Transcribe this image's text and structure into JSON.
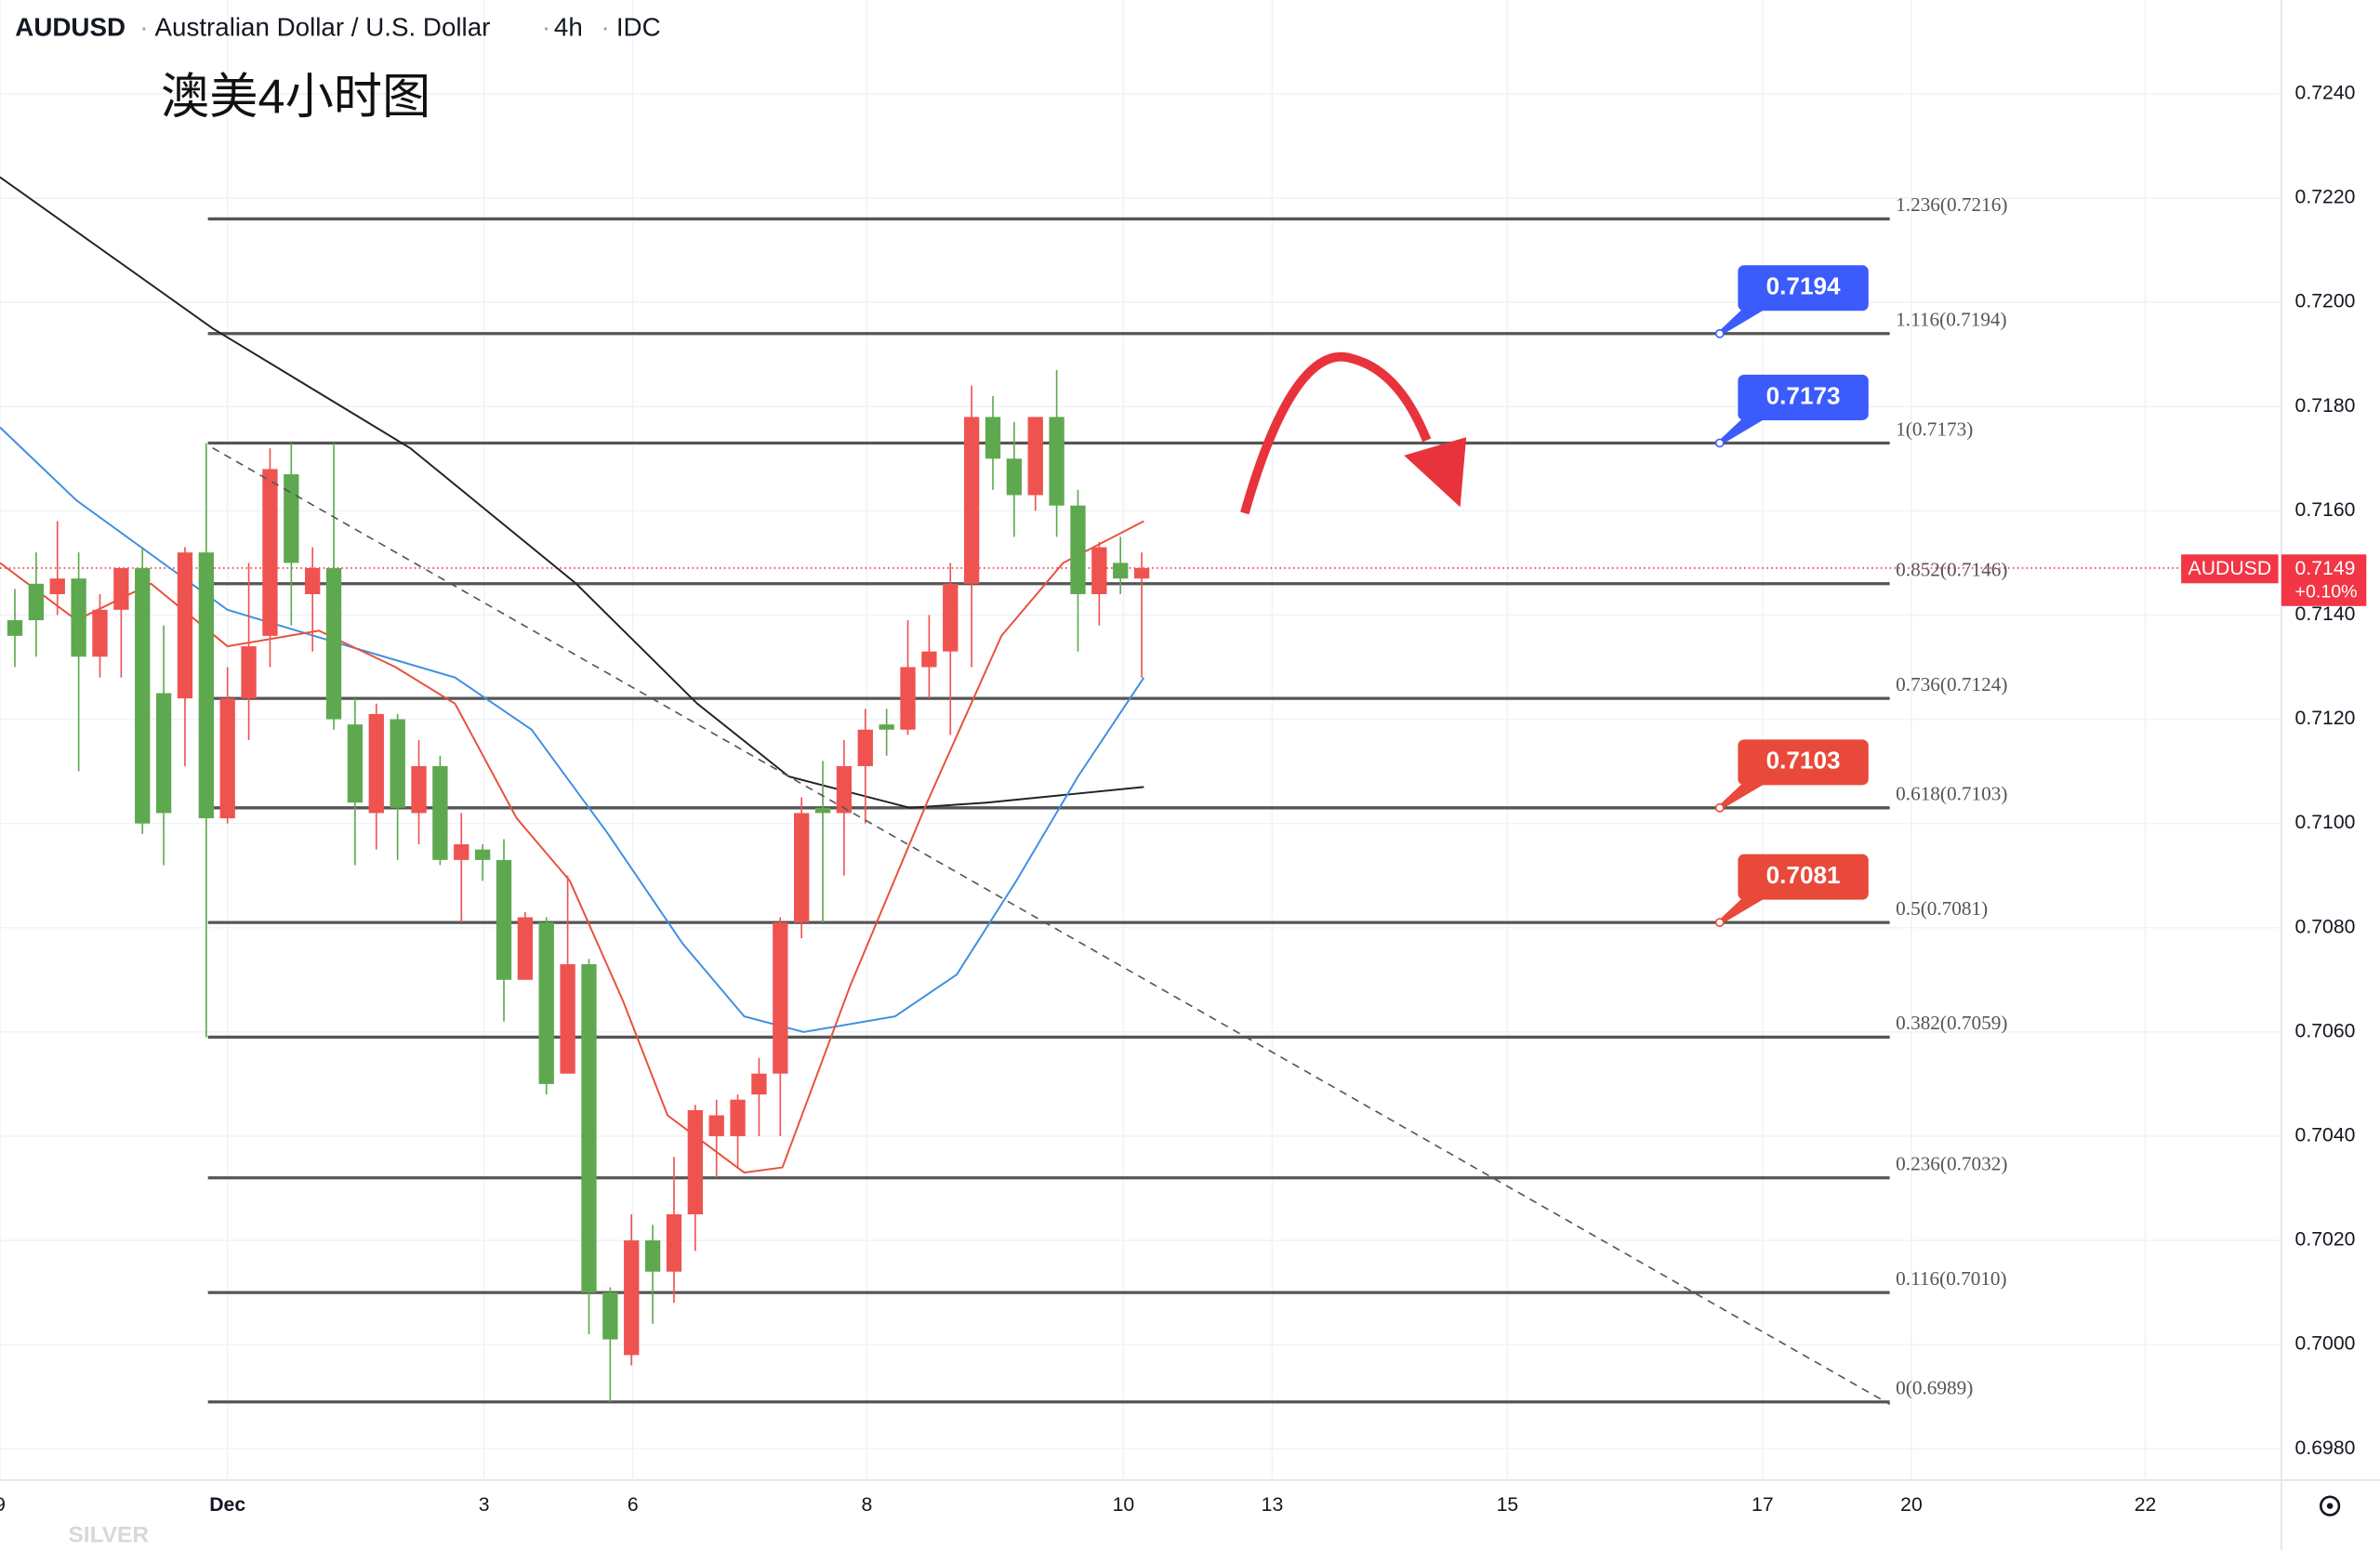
{
  "header": {
    "symbol": "AUDUSD",
    "name": "Australian Dollar / U.S. Dollar",
    "interval": "4h",
    "source": "IDC"
  },
  "chart_data": {
    "type": "candlestick",
    "title": "澳美4小时图",
    "watermark": "SILVER",
    "open": [
      0.7139,
      0.7146,
      0.7144,
      0.7147,
      0.7132,
      0.7141,
      0.7149,
      0.7125,
      0.7124,
      0.7152,
      0.7101,
      0.7124,
      0.7136,
      0.7167,
      0.7144,
      0.7149,
      0.7119,
      0.7102,
      0.712,
      0.7102,
      0.7111,
      0.7093,
      0.7095,
      0.7093,
      0.707,
      0.7081,
      0.7052,
      0.7073,
      0.701,
      0.6998,
      0.702,
      0.7014,
      0.7025,
      0.704,
      0.704,
      0.7048,
      0.7052,
      0.7081,
      0.7103,
      0.7102,
      0.7111,
      0.7119,
      0.7118,
      0.713,
      0.7133,
      0.7146,
      0.7178,
      0.717,
      0.7163,
      0.7178,
      0.7161,
      0.7144,
      0.715,
      0.7147
    ],
    "high": [
      0.7145,
      0.7152,
      0.7158,
      0.7152,
      0.7144,
      0.7149,
      0.7153,
      0.7138,
      0.7153,
      0.7173,
      0.713,
      0.715,
      0.7172,
      0.7173,
      0.7153,
      0.7173,
      0.7124,
      0.7123,
      0.7121,
      0.7116,
      0.7113,
      0.7102,
      0.7096,
      0.7097,
      0.7083,
      0.7082,
      0.709,
      0.7074,
      0.7011,
      0.7025,
      0.7023,
      0.7036,
      0.7046,
      0.7047,
      0.7048,
      0.7055,
      0.7082,
      0.7105,
      0.7112,
      0.7116,
      0.7122,
      0.7122,
      0.7139,
      0.714,
      0.715,
      0.7184,
      0.7182,
      0.7177,
      0.7178,
      0.7187,
      0.7164,
      0.7154,
      0.7155,
      0.7152
    ],
    "low": [
      0.713,
      0.7132,
      0.714,
      0.711,
      0.7128,
      0.7128,
      0.7098,
      0.7092,
      0.7111,
      0.7059,
      0.71,
      0.7116,
      0.713,
      0.7138,
      0.7133,
      0.7118,
      0.7092,
      0.7095,
      0.7093,
      0.7096,
      0.7092,
      0.7081,
      0.7089,
      0.7062,
      0.707,
      0.7048,
      0.7052,
      0.7002,
      0.6989,
      0.6996,
      0.7004,
      0.7008,
      0.7018,
      0.7032,
      0.7034,
      0.704,
      0.704,
      0.7078,
      0.7081,
      0.709,
      0.71,
      0.7113,
      0.7117,
      0.7124,
      0.7117,
      0.713,
      0.7164,
      0.7155,
      0.716,
      0.7155,
      0.7133,
      0.7138,
      0.7144,
      0.7128
    ],
    "close": [
      0.7136,
      0.7139,
      0.7147,
      0.7132,
      0.7141,
      0.7149,
      0.71,
      0.7102,
      0.7152,
      0.7101,
      0.7124,
      0.7134,
      0.7168,
      0.715,
      0.7149,
      0.712,
      0.7104,
      0.7121,
      0.7103,
      0.7111,
      0.7093,
      0.7096,
      0.7093,
      0.707,
      0.7082,
      0.705,
      0.7073,
      0.701,
      0.7001,
      0.702,
      0.7014,
      0.7025,
      0.7045,
      0.7044,
      0.7047,
      0.7052,
      0.7081,
      0.7102,
      0.7102,
      0.7111,
      0.7118,
      0.7118,
      0.713,
      0.7133,
      0.7146,
      0.7178,
      0.717,
      0.7163,
      0.7178,
      0.7161,
      0.7144,
      0.7153,
      0.7147,
      0.7149
    ],
    "up_color": "#ef5350",
    "down_color": "#5ea94f",
    "xlim": [
      -0.7,
      106.6
    ],
    "ylim": [
      0.6974,
      0.7258
    ],
    "yticks": [
      {
        "value": 0.724,
        "label": "0.7240"
      },
      {
        "value": 0.722,
        "label": "0.7220"
      },
      {
        "value": 0.72,
        "label": "0.7200"
      },
      {
        "value": 0.718,
        "label": "0.7180"
      },
      {
        "value": 0.716,
        "label": "0.7160"
      },
      {
        "value": 0.714,
        "label": "0.7140"
      },
      {
        "value": 0.712,
        "label": "0.7120"
      },
      {
        "value": 0.71,
        "label": "0.7100"
      },
      {
        "value": 0.708,
        "label": "0.7080"
      },
      {
        "value": 0.706,
        "label": "0.7060"
      },
      {
        "value": 0.704,
        "label": "0.7040"
      },
      {
        "value": 0.702,
        "label": "0.7020"
      },
      {
        "value": 0.7,
        "label": "0.7000"
      },
      {
        "value": 0.698,
        "label": "0.6980"
      }
    ],
    "xticks": [
      {
        "value": -0.7,
        "label": "9"
      },
      {
        "value": 10,
        "label": "Dec"
      },
      {
        "value": 22.07,
        "label": "3"
      },
      {
        "value": 29.07,
        "label": "6"
      },
      {
        "value": 40.07,
        "label": "8"
      },
      {
        "value": 52.14,
        "label": "10"
      },
      {
        "value": 59.14,
        "label": "13"
      },
      {
        "value": 70.2,
        "label": "15"
      },
      {
        "value": 82.2,
        "label": "17"
      },
      {
        "value": 89.2,
        "label": "20"
      },
      {
        "value": 100.2,
        "label": "22"
      }
    ],
    "moving_averages": [
      {
        "color": "#222222",
        "x": [
          -0.7,
          9.3,
          18.6,
          26.4,
          32.1,
          36.4,
          42.1,
          45.7,
          53.1
        ],
        "values": [
          0.7224,
          0.7195,
          0.7172,
          0.7146,
          0.7123,
          0.7109,
          0.7103,
          0.7104,
          0.7107
        ]
      },
      {
        "color": "#3d8fe0",
        "x": [
          -0.7,
          2.9,
          10,
          15.7,
          20.7,
          24.3,
          27.9,
          31.4,
          34.3,
          37.1,
          41.4,
          44.3,
          47.1,
          50,
          53.1
        ],
        "values": [
          0.7176,
          0.7162,
          0.7141,
          0.7134,
          0.7128,
          0.7118,
          0.7098,
          0.7077,
          0.7063,
          0.706,
          0.7063,
          0.7071,
          0.7089,
          0.7109,
          0.7128
        ]
      },
      {
        "color": "#e8503a",
        "x": [
          -0.7,
          2.9,
          6.4,
          10,
          14.3,
          17.9,
          20.7,
          23.6,
          26.1,
          28.6,
          30.7,
          34.3,
          36.1,
          39.3,
          42.9,
          46.4,
          49.3,
          53.1
        ],
        "values": [
          0.715,
          0.7139,
          0.7146,
          0.7134,
          0.7137,
          0.713,
          0.7123,
          0.7101,
          0.7089,
          0.7066,
          0.7044,
          0.7033,
          0.7034,
          0.7069,
          0.7104,
          0.7136,
          0.715,
          0.7158
        ]
      }
    ],
    "fib_levels": [
      {
        "value": 0.7216,
        "label": "1.236(0.7216)"
      },
      {
        "value": 0.7194,
        "label": "1.116(0.7194)"
      },
      {
        "value": 0.7173,
        "label": "1(0.7173)"
      },
      {
        "value": 0.7146,
        "label": "0.852(0.7146)"
      },
      {
        "value": 0.7124,
        "label": "0.736(0.7124)"
      },
      {
        "value": 0.7103,
        "label": "0.618(0.7103)"
      },
      {
        "value": 0.7081,
        "label": "0.5(0.7081)"
      },
      {
        "value": 0.7059,
        "label": "0.382(0.7059)"
      },
      {
        "value": 0.7032,
        "label": "0.236(0.7032)"
      },
      {
        "value": 0.701,
        "label": "0.116(0.7010)"
      },
      {
        "value": 0.6989,
        "label": "0(0.6989)"
      }
    ],
    "price_tags": [
      {
        "value": 0.7194,
        "color": "#3b5bfd"
      },
      {
        "value": 0.7173,
        "color": "#3b5bfd"
      },
      {
        "value": 0.7103,
        "color": "#e8493a"
      },
      {
        "value": 0.7081,
        "color": "#e8493a"
      }
    ],
    "last_price": {
      "symbol": "AUDUSD",
      "value": 0.7149,
      "change": {
        "value": 0.1,
        "label": "+0.10%"
      },
      "color": "#f23645"
    }
  }
}
